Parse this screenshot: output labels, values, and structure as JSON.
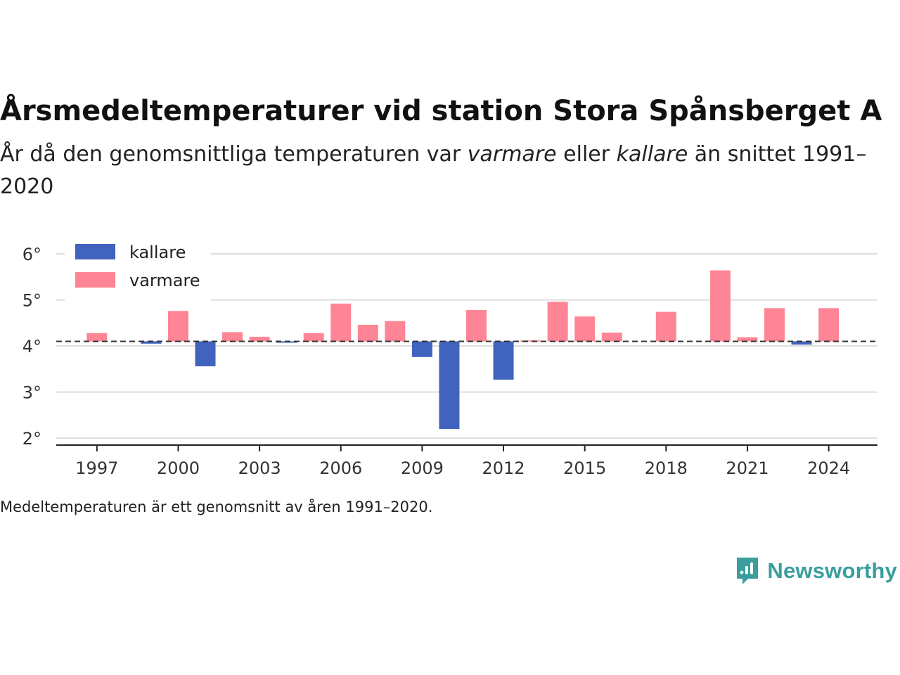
{
  "title": "Årsmedeltemperaturer vid station Stora Spånsberget A",
  "subtitle": {
    "part1": "År då den genomsnittliga temperaturen var ",
    "warmer": "varmare",
    "part2": " eller ",
    "colder": "kallare",
    "part3": " än snittet 1991–2020"
  },
  "footnote": "Medeltemperaturen är ett genomsnitt av åren 1991–2020.",
  "brand": {
    "name": "Newsworthy",
    "color": "#3a9e9e"
  },
  "chart_data": {
    "type": "bar",
    "title": "Årsmedeltemperaturer vid station Stora Spånsberget A",
    "baseline": 4.1,
    "baseline_style": "dashed",
    "ylim": [
      1.85,
      6.35
    ],
    "y_ticks": [
      2,
      3,
      4,
      5,
      6
    ],
    "y_tick_labels": [
      "2°",
      "3°",
      "4°",
      "5°",
      "6°"
    ],
    "xlim": [
      1995.5,
      2025.8
    ],
    "x_ticks": [
      1997,
      2000,
      2003,
      2006,
      2009,
      2012,
      2015,
      2018,
      2021,
      2024
    ],
    "x_tick_labels": [
      "1997",
      "2000",
      "2003",
      "2006",
      "2009",
      "2012",
      "2015",
      "2018",
      "2021",
      "2024"
    ],
    "grid": true,
    "legend": {
      "placement": "top-left",
      "entries": [
        {
          "key": "kallare",
          "label": "kallare",
          "color": "#4063be"
        },
        {
          "key": "varmare",
          "label": "varmare",
          "color": "#fe8595"
        }
      ]
    },
    "colors": {
      "kallare": "#4063be",
      "varmare": "#fe8595"
    },
    "x": [
      1997,
      1999,
      2000,
      2001,
      2002,
      2003,
      2004,
      2005,
      2006,
      2007,
      2008,
      2009,
      2010,
      2011,
      2012,
      2013,
      2014,
      2015,
      2016,
      2018,
      2020,
      2021,
      2022,
      2023,
      2024
    ],
    "values": [
      4.28,
      4.05,
      4.76,
      3.56,
      4.3,
      4.2,
      4.07,
      4.28,
      4.92,
      4.46,
      4.54,
      3.76,
      2.2,
      4.78,
      3.27,
      4.12,
      4.96,
      4.64,
      4.29,
      4.74,
      5.64,
      4.19,
      4.82,
      4.03,
      4.82
    ]
  }
}
